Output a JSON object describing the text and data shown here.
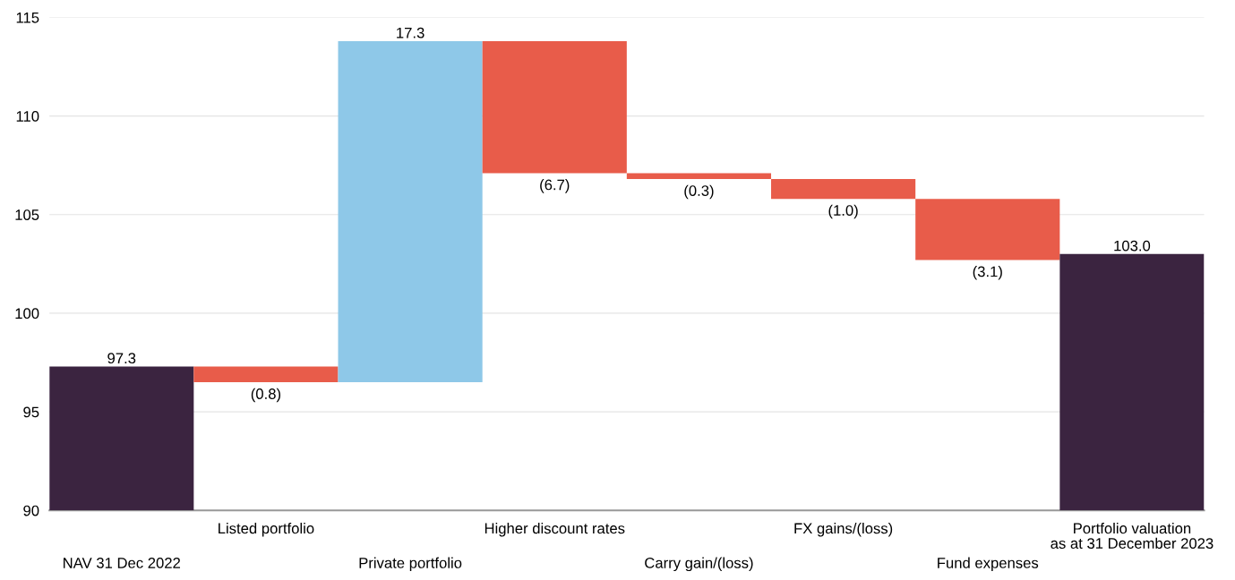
{
  "chart_data": {
    "type": "bar",
    "categories": [
      "NAV 31 Dec 2022",
      "Listed portfolio",
      "Private portfolio",
      "Higher discount rates",
      "Carry gain/(loss)",
      "FX gains/(loss)",
      "Fund expenses",
      "Portfolio valuation\nas at 31 December 2023"
    ],
    "base": [
      90,
      97.3,
      96.5,
      113.8,
      107.1,
      106.8,
      105.8,
      90
    ],
    "values": [
      7.3,
      -0.8,
      17.3,
      -6.7,
      -0.3,
      -1.0,
      -3.1,
      13.0
    ],
    "colors": [
      "#3b2440",
      "#e85c4a",
      "#8ec8e8",
      "#e85c4a",
      "#e85c4a",
      "#e85c4a",
      "#e85c4a",
      "#3b2440"
    ],
    "value_labels": [
      "97.3",
      "(0.8)",
      "17.3",
      "(6.7)",
      "(0.3)",
      "(1.0)",
      "(3.1)",
      "103.0"
    ],
    "ylim": [
      90,
      115
    ],
    "yticks": [
      90,
      95,
      100,
      105,
      110,
      115
    ],
    "grid": "y",
    "legend": false
  }
}
